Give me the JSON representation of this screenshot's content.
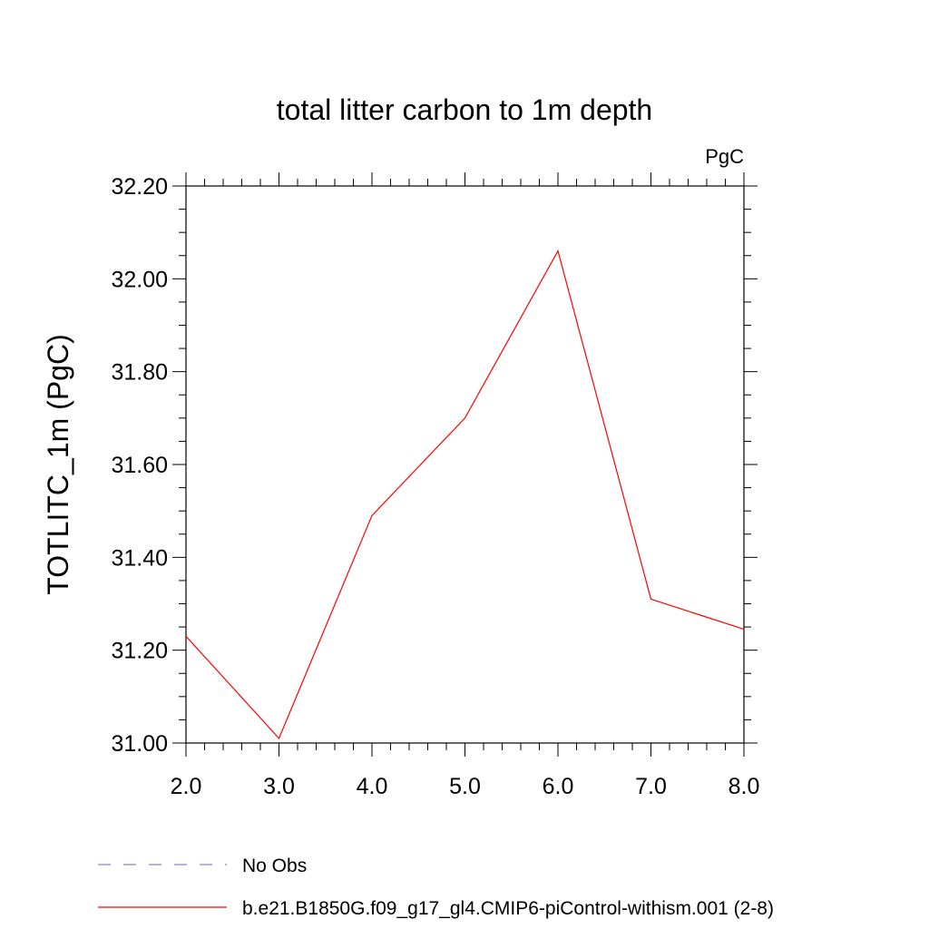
{
  "chart_data": {
    "type": "line",
    "title": "total litter carbon to 1m depth",
    "units": "PgC",
    "ylabel": "TOTLITC_1m  (PgC)",
    "xlabel": "",
    "x": [
      2,
      3,
      4,
      5,
      6,
      7,
      8
    ],
    "xlim": [
      2,
      8
    ],
    "ylim": [
      31.0,
      32.2
    ],
    "x_ticks": [
      "2.0",
      "3.0",
      "4.0",
      "5.0",
      "6.0",
      "7.0",
      "8.0"
    ],
    "y_ticks": [
      "31.00",
      "31.20",
      "31.40",
      "31.60",
      "31.80",
      "32.00",
      "32.20"
    ],
    "series": [
      {
        "name": "b.e21.B1850G.f09_g17_gl4.CMIP6-piControl-withism.001 (2-8)",
        "color": "#ff0000",
        "values": [
          31.23,
          31.01,
          31.49,
          31.7,
          32.06,
          31.31,
          31.245
        ]
      }
    ],
    "legend": [
      {
        "label": "No Obs",
        "color": "#8a7fc8",
        "style": "dashed"
      },
      {
        "label": "b.e21.B1850G.f09_g17_gl4.CMIP6-piControl-withism.001 (2-8)",
        "color": "#ff0000",
        "style": "solid"
      }
    ],
    "legend_position": "bottom"
  }
}
